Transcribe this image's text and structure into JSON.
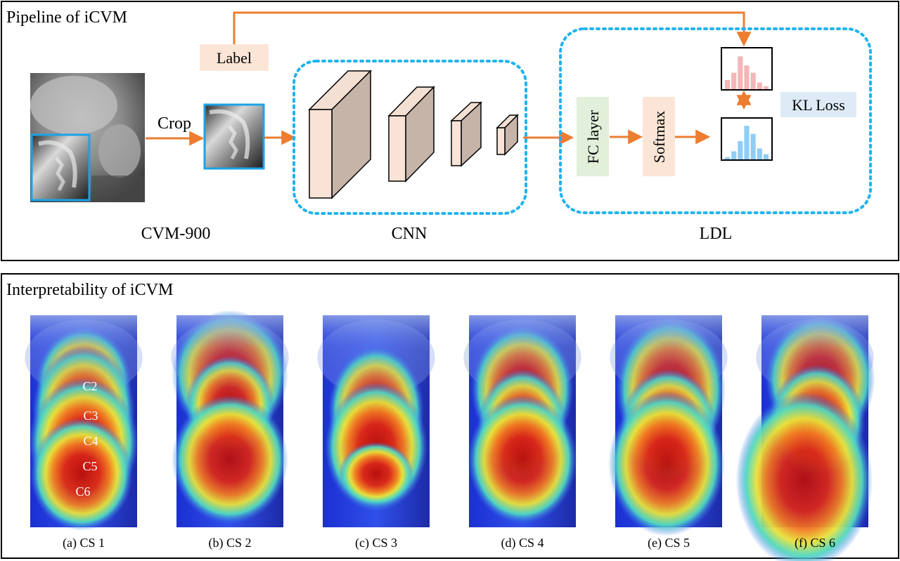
{
  "top_panel": {
    "title": "Pipeline of iCVM",
    "label_box": "Label",
    "crop_label": "Crop",
    "dataset_caption": "CVM-900",
    "cnn_caption": "CNN",
    "ldl_caption": "LDL",
    "fc_layer": "FC layer",
    "softmax": "Softmax",
    "kl_loss": "KL Loss",
    "label_histogram": [
      0.25,
      0.45,
      0.9,
      0.65,
      0.45,
      0.18,
      0.08
    ],
    "predicted_histogram": [
      0.06,
      0.22,
      0.5,
      0.92,
      0.7,
      0.3,
      0.14
    ],
    "colors": {
      "arrow": "#ed7d31",
      "dashed_border": "#1fb3ef",
      "crop_border": "#1aa3e8",
      "label_box": "#fbe5d6",
      "fc_box": "#e2efda",
      "softmax_box": "#fbe5d6",
      "kl_box": "#deebf7",
      "cnn_front": "#f8e3d6",
      "cnn_side": "#c6b4a8",
      "hist_pink": "#f4b6b6",
      "hist_blue": "#8ecdf5"
    }
  },
  "bottom_panel": {
    "title": "Interpretability of iCVM",
    "panels": [
      {
        "caption": "(a) CS 1"
      },
      {
        "caption": "(b) CS 2"
      },
      {
        "caption": "(c) CS 3"
      },
      {
        "caption": "(d) CS 4"
      },
      {
        "caption": "(e) CS 5"
      },
      {
        "caption": "(f) CS 6"
      }
    ],
    "vertebra_labels": [
      "C2",
      "C3",
      "C4",
      "C5",
      "C6"
    ]
  }
}
